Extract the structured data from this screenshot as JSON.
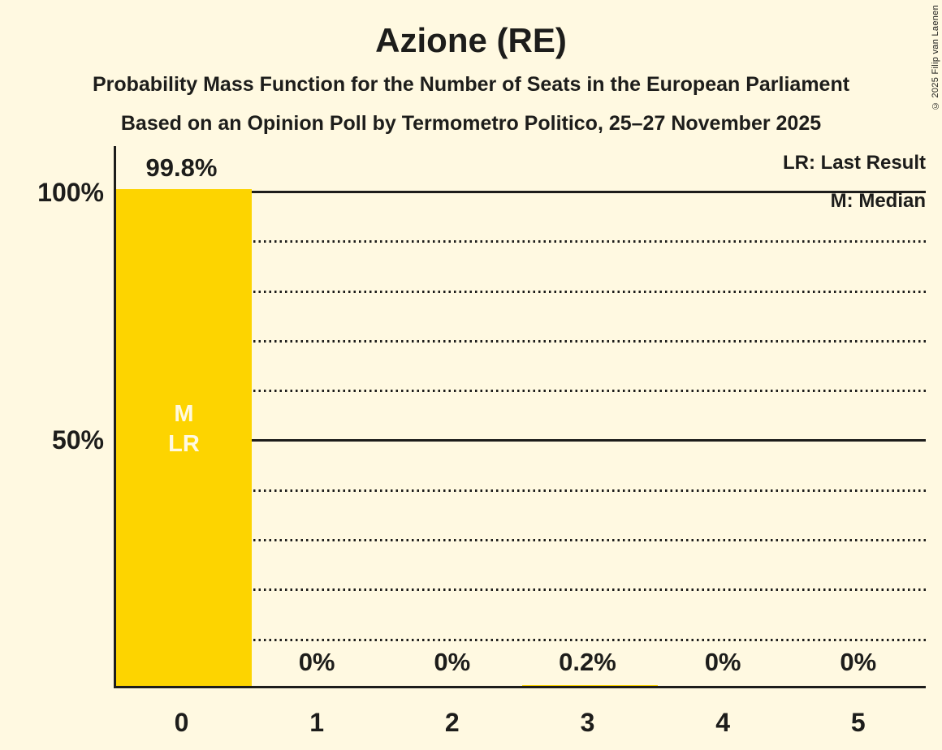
{
  "title": "Azione (RE)",
  "subtitles": [
    "Probability Mass Function for the Number of Seats in the European Parliament",
    "Based on an Opinion Poll by Termometro Politico, 25–27 November 2025"
  ],
  "copyright": "© 2025 Filip van Laenen",
  "legend": {
    "last_result": "LR: Last Result",
    "median": "M: Median"
  },
  "y_axis": {
    "tick_100": "100%",
    "tick_50": "50%"
  },
  "colors": {
    "background": "#FFF9E1",
    "bar": "#FDD400",
    "text": "#1D1D1B",
    "bar_label_text": "#FFF9E1"
  },
  "chart_data": {
    "type": "bar",
    "title": "Azione (RE)",
    "categories": [
      "0",
      "1",
      "2",
      "3",
      "4",
      "5"
    ],
    "values": [
      99.8,
      0,
      0,
      0.2,
      0,
      0
    ],
    "value_labels": [
      "99.8%",
      "0%",
      "0%",
      "0.2%",
      "0%",
      "0%"
    ],
    "ylim": [
      0,
      100
    ],
    "y_tick_labels": [
      "100%",
      "50%"
    ],
    "gridlines": {
      "dotted_every_pct": 10,
      "solid_at_pct": [
        50,
        100
      ]
    },
    "legend_position": "top-right",
    "bar_annotations": [
      {
        "category": "0",
        "labels": [
          "M",
          "LR"
        ]
      }
    ]
  }
}
